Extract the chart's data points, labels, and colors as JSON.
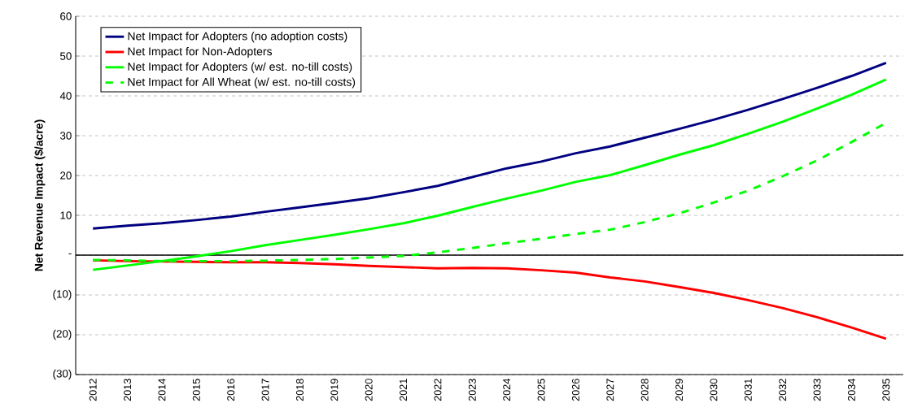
{
  "chart_data": {
    "type": "line",
    "ylabel": "Net Revenue Impact ($/acre)",
    "categories": [
      "2012",
      "2013",
      "2014",
      "2015",
      "2016",
      "2017",
      "2018",
      "2019",
      "2020",
      "2021",
      "2022",
      "2023",
      "2024",
      "2025",
      "2026",
      "2027",
      "2028",
      "2029",
      "2030",
      "2031",
      "2032",
      "2033",
      "2034",
      "2035"
    ],
    "series": [
      {
        "name": "Net Impact for Adopters (no adoption costs)",
        "color": "#000080",
        "values": [
          6.7,
          7.4,
          8.0,
          8.8,
          9.7,
          10.9,
          12.0,
          13.1,
          14.3,
          15.8,
          17.4,
          19.6,
          21.8,
          23.5,
          25.6,
          27.3,
          29.5,
          31.7,
          34.0,
          36.5,
          39.2,
          42.0,
          45.0,
          48.3
        ]
      },
      {
        "name": "Net Impact for Non-Adopters",
        "color": "#ff0000",
        "values": [
          -1.3,
          -1.5,
          -1.6,
          -1.7,
          -1.8,
          -1.8,
          -2.0,
          -2.3,
          -2.7,
          -3.0,
          -3.3,
          -3.2,
          -3.3,
          -3.8,
          -4.4,
          -5.6,
          -6.6,
          -8.0,
          -9.5,
          -11.3,
          -13.3,
          -15.6,
          -18.2,
          -21.0
        ]
      },
      {
        "name": "Net Impact for Adopters (w/ est. no-till costs)",
        "color": "#00ff00",
        "values": [
          -3.7,
          -2.6,
          -1.5,
          -0.3,
          1.0,
          2.5,
          3.8,
          5.1,
          6.5,
          8.0,
          9.9,
          12.1,
          14.2,
          16.2,
          18.4,
          20.1,
          22.6,
          25.2,
          27.6,
          30.5,
          33.5,
          36.8,
          40.3,
          44.1
        ]
      },
      {
        "name": "Net Impact for All Wheat (w/ est. no-till costs)",
        "color": "#00ff00",
        "line_style": "dashed",
        "values": [
          -1.2,
          -1.3,
          -1.5,
          -1.5,
          -1.5,
          -1.4,
          -1.2,
          -1.0,
          -0.6,
          -0.2,
          0.7,
          1.8,
          3.0,
          4.1,
          5.3,
          6.4,
          8.3,
          10.5,
          13.2,
          16.2,
          19.8,
          23.8,
          28.4,
          33.2
        ]
      }
    ],
    "ylim": [
      -30,
      60
    ],
    "yticks": [
      {
        "value": -30,
        "label": "(30)"
      },
      {
        "value": -20,
        "label": "(20)"
      },
      {
        "value": -10,
        "label": "(10)"
      },
      {
        "value": 0,
        "label": "-"
      },
      10,
      20,
      30,
      40,
      50,
      60
    ],
    "grid": "y",
    "legend": "top left",
    "marker": "none",
    "line_style": "solid"
  }
}
